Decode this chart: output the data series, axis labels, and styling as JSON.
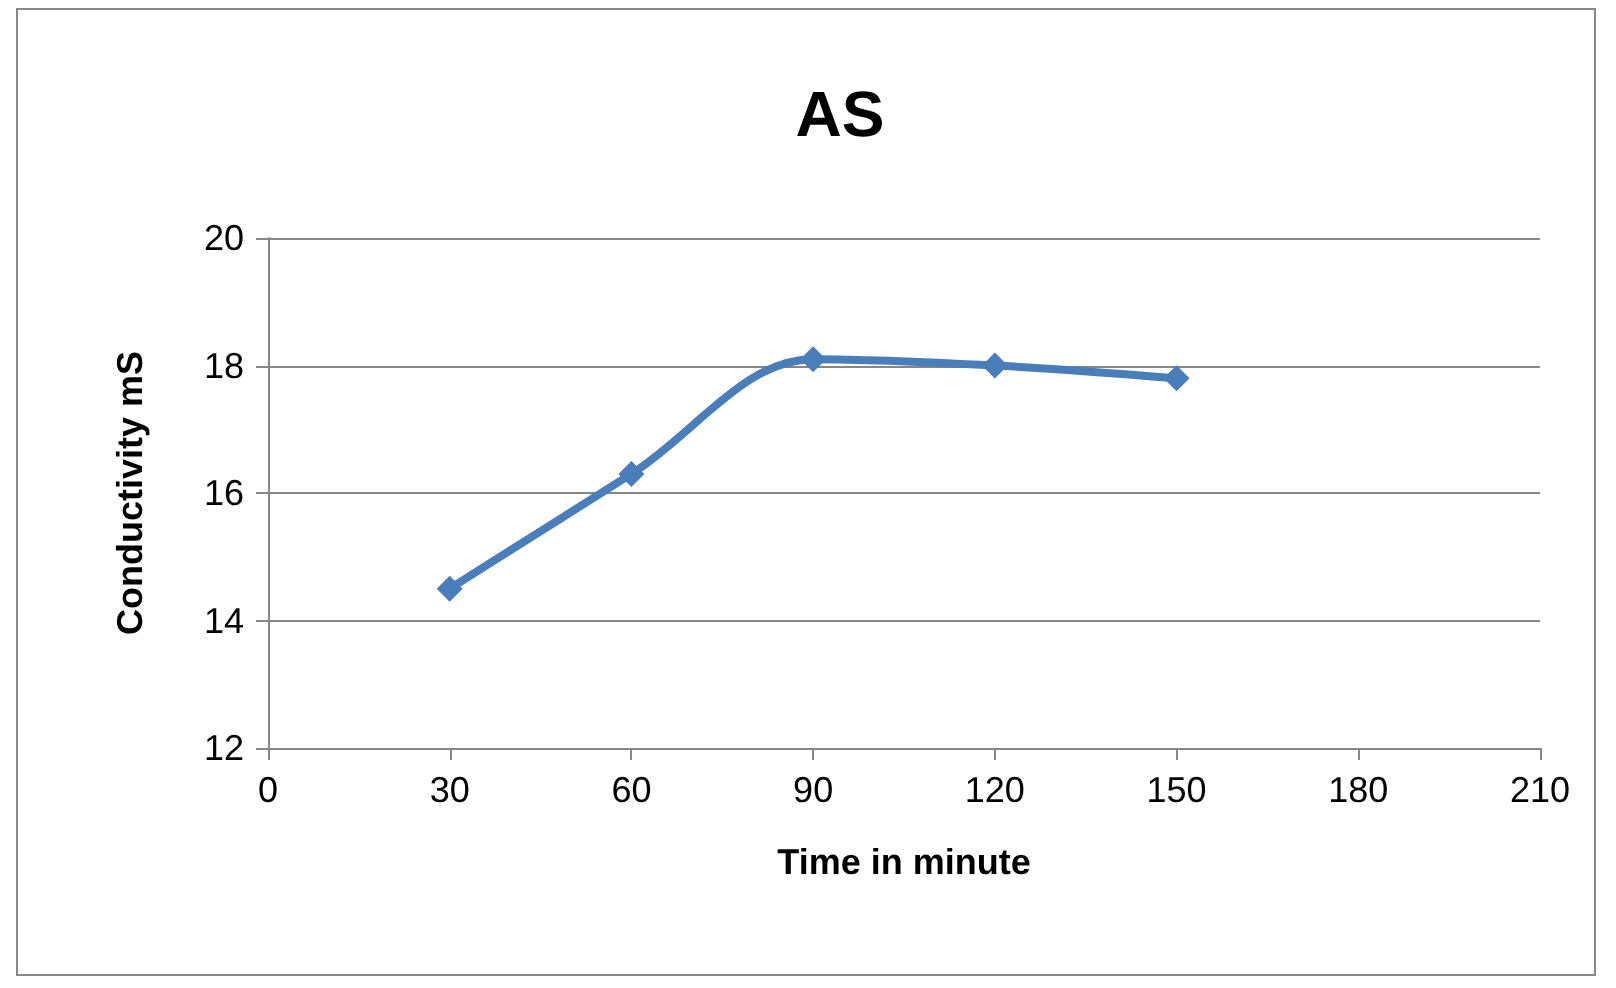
{
  "chart_data": {
    "type": "line",
    "title": "AS",
    "xlabel": "Time in minute",
    "ylabel": "Conductivity mS",
    "x": [
      30,
      60,
      90,
      120,
      150
    ],
    "series": [
      {
        "color": "#4a7ebb",
        "values": [
          14.5,
          16.3,
          18.1,
          18.0,
          17.8
        ]
      }
    ],
    "xlim": [
      0,
      210
    ],
    "xticks": [
      0,
      30,
      60,
      90,
      120,
      150,
      180,
      210
    ],
    "ylim": [
      12,
      20
    ],
    "yticks": [
      12,
      14,
      16,
      18,
      20
    ],
    "grid": "y",
    "marker": "diamond",
    "line_style": "solid"
  }
}
